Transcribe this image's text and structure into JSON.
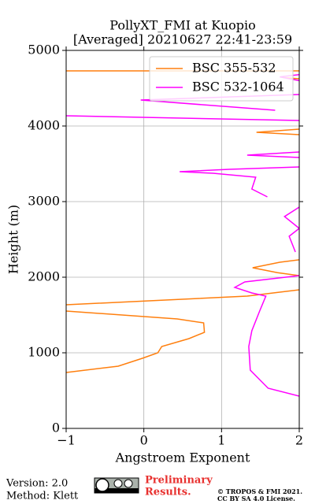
{
  "chart_data": {
    "type": "profile",
    "title": "PollyXT_FMI at Kuopio",
    "subtitle": "[Averaged] 20210627 22:41-23:59",
    "x_label": "Angstroem Exponent",
    "y_label": "Height (m)",
    "xlim": [
      -1,
      2
    ],
    "xticks": [
      {
        "value": -1,
        "label": "−1"
      },
      0,
      1,
      2
    ],
    "ylim": [
      0,
      5000
    ],
    "yticks": [
      0,
      1000,
      2000,
      3000,
      4000,
      5000
    ],
    "grid": true,
    "legend": "upper right",
    "series": [
      {
        "name": "BSC 355-532",
        "color": "#ff7f0e",
        "x": [
          -1,
          -0.33,
          -0.02,
          0.18,
          0.23,
          0.58,
          0.78,
          0.77,
          0.43,
          -1,
          null,
          -1,
          0.28,
          1.33,
          2,
          null,
          2,
          1.72,
          1.4,
          1.75,
          2,
          null,
          2,
          1.45,
          2,
          null,
          -1,
          2,
          null,
          2,
          1.8
        ],
        "y": [
          740,
          823,
          927,
          1000,
          1083,
          1188,
          1271,
          1396,
          1448,
          1552,
          null,
          1635,
          1698,
          1750,
          1833,
          null,
          2021,
          2060,
          2125,
          2198,
          2230,
          null,
          3958,
          3917,
          3885,
          null,
          4729,
          4729,
          null,
          4625,
          4640
        ]
      },
      {
        "name": "BSC 532-1064",
        "color": "#ff00ff",
        "x": [
          2,
          1.6,
          1.37,
          1.35,
          1.39,
          1.49,
          1.57,
          1.39,
          1.17,
          1.3,
          2,
          null,
          1.95,
          1.87,
          2,
          1.81,
          2,
          null,
          1.59,
          1.39,
          1.44,
          0.89,
          0.46,
          1.1,
          2,
          null,
          2,
          1.33,
          2,
          null,
          2,
          -1,
          null,
          1.69,
          -0.04,
          2,
          null,
          2,
          1.75,
          2
        ],
        "y": [
          427,
          531,
          771,
          1083,
          1292,
          1552,
          1750,
          1792,
          1865,
          1938,
          2021,
          null,
          2333,
          2542,
          2646,
          2802,
          2927,
          null,
          3063,
          3167,
          3323,
          3375,
          3396,
          3427,
          3458,
          null,
          3656,
          3615,
          3583,
          null,
          4073,
          4135,
          null,
          4208,
          4344,
          4417,
          null,
          4600,
          4650,
          4680
        ]
      }
    ],
    "footer": {
      "version": "Version: 2.0",
      "method": "Method: Klett",
      "preliminary": [
        "Preliminary",
        "Results."
      ],
      "copyright": [
        "© TROPOS & FMI 2021.",
        "CC BY SA 4.0 License."
      ]
    }
  }
}
